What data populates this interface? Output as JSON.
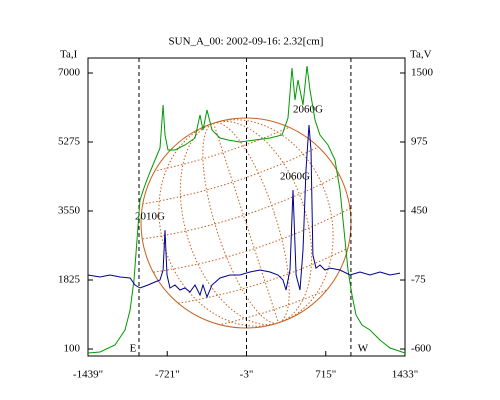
{
  "chart_data": {
    "type": "line",
    "title": "SUN_A_00: 2002-09-16: 2.32[cm]",
    "ylabel": "Ta,I",
    "y2label": "Ta,V",
    "xlim": [
      -1439,
      1433
    ],
    "xticks": [
      {
        "value": -1439,
        "label": "-1439\""
      },
      {
        "value": -721,
        "label": "-721\""
      },
      {
        "value": -3,
        "label": "-3\""
      },
      {
        "value": 715,
        "label": "715\""
      },
      {
        "value": 1433,
        "label": "1433\""
      }
    ],
    "ylim": [
      -75,
      7375
    ],
    "yticks": [
      100,
      1825,
      3550,
      5275,
      7000
    ],
    "y2lim": [
      -653,
      1614
    ],
    "y2ticks": [
      -600,
      -75,
      450,
      975,
      1500
    ],
    "vlines": [
      {
        "value": -977,
        "label": "E"
      },
      {
        "value": -3
      },
      {
        "value": 943,
        "label": "W"
      }
    ],
    "annotations": [
      "2010G",
      "2060G",
      "2060G"
    ],
    "series": [
      {
        "color": "#009900",
        "x": [
          -1439,
          -1330,
          -1194,
          -1104,
          -1058,
          -1022,
          -995,
          -968,
          -923,
          -877,
          -832,
          -787,
          -759,
          -741,
          -714,
          -651,
          -560,
          -470,
          -424,
          -397,
          -361,
          -316,
          -243,
          -171,
          -63,
          74,
          210,
          319,
          373,
          409,
          436,
          464,
          509,
          545,
          572,
          618,
          663,
          735,
          799,
          844,
          880,
          917,
          953,
          989,
          1043,
          1116,
          1206,
          1297,
          1433
        ],
        "values": [
          0,
          25,
          200,
          575,
          1075,
          1825,
          2825,
          3825,
          4200,
          4525,
          4825,
          5125,
          6200,
          5450,
          5075,
          5075,
          5200,
          5375,
          5950,
          5575,
          6075,
          5575,
          5375,
          5325,
          5275,
          5325,
          5375,
          5450,
          5875,
          7125,
          6325,
          6825,
          6200,
          7175,
          6575,
          5825,
          5450,
          5200,
          4825,
          4075,
          3075,
          2075,
          1450,
          950,
          700,
          575,
          325,
          125,
          0
        ]
      },
      {
        "color": "#00008b",
        "axis": "y2",
        "x": [
          -1439,
          -1330,
          -1240,
          -1149,
          -1058,
          -1013,
          -968,
          -895,
          -832,
          -787,
          -759,
          -741,
          -723,
          -696,
          -651,
          -606,
          -560,
          -515,
          -470,
          -424,
          -397,
          -361,
          -316,
          -243,
          -153,
          -63,
          28,
          119,
          210,
          282,
          328,
          355,
          391,
          418,
          446,
          482,
          509,
          536,
          563,
          581,
          599,
          627,
          663,
          708,
          753,
          844,
          935,
          1025,
          1116,
          1206,
          1297,
          1388
        ],
        "values": [
          -37,
          -52,
          -37,
          -52,
          -60,
          -113,
          -136,
          -113,
          -90,
          -75,
          1,
          305,
          -37,
          -136,
          -113,
          -151,
          -136,
          -166,
          -113,
          -189,
          -113,
          -204,
          -113,
          -60,
          -37,
          -37,
          -14,
          1,
          -14,
          -37,
          -75,
          -151,
          1,
          610,
          -37,
          -151,
          153,
          762,
          1104,
          914,
          115,
          16,
          39,
          1,
          16,
          1,
          -37,
          -14,
          -37,
          -14,
          -37,
          -22
        ]
      }
    ]
  }
}
